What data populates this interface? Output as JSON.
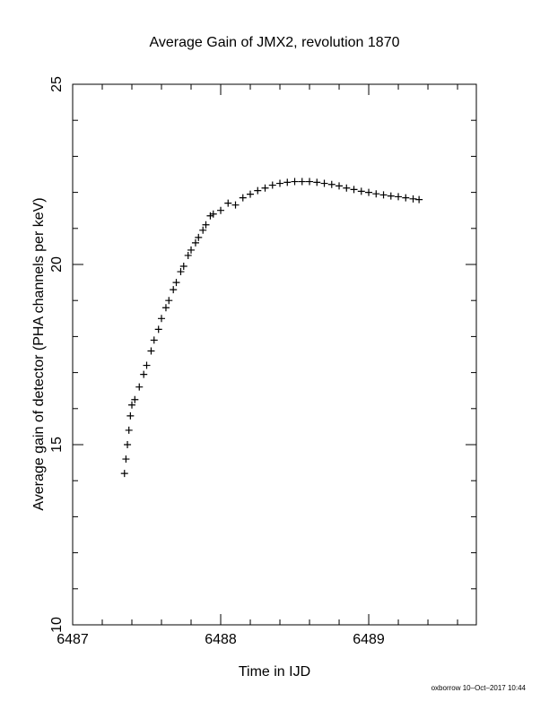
{
  "chart_data": {
    "type": "scatter",
    "title": "Average Gain of JMX2, revolution 1870",
    "xlabel": "Time in IJD",
    "ylabel": "Average gain of detector (PHA channels per keV)",
    "color": "#000000",
    "x": [
      6487.35,
      6487.36,
      6487.37,
      6487.38,
      6487.39,
      6487.4,
      6487.42,
      6487.45,
      6487.48,
      6487.5,
      6487.53,
      6487.55,
      6487.58,
      6487.6,
      6487.63,
      6487.65,
      6487.68,
      6487.7,
      6487.73,
      6487.75,
      6487.78,
      6487.8,
      6487.83,
      6487.85,
      6487.88,
      6487.9,
      6487.93,
      6487.95,
      6488.0,
      6488.05,
      6488.1,
      6488.15,
      6488.2,
      6488.25,
      6488.3,
      6488.35,
      6488.4,
      6488.45,
      6488.5,
      6488.55,
      6488.6,
      6488.65,
      6488.7,
      6488.75,
      6488.8,
      6488.85,
      6488.9,
      6488.95,
      6489.0,
      6489.05,
      6489.1,
      6489.15,
      6489.2,
      6489.25,
      6489.3,
      6489.34
    ],
    "values": [
      14.2,
      14.6,
      15.0,
      15.4,
      15.8,
      16.1,
      16.25,
      16.6,
      16.95,
      17.2,
      17.6,
      17.9,
      18.2,
      18.5,
      18.8,
      19.0,
      19.3,
      19.5,
      19.8,
      19.95,
      20.25,
      20.4,
      20.6,
      20.75,
      20.95,
      21.1,
      21.35,
      21.4,
      21.5,
      21.7,
      21.65,
      21.85,
      21.95,
      22.05,
      22.12,
      22.2,
      22.25,
      22.28,
      22.3,
      22.3,
      22.3,
      22.28,
      22.25,
      22.22,
      22.18,
      22.12,
      22.08,
      22.03,
      22.0,
      21.96,
      21.93,
      21.9,
      21.88,
      21.85,
      21.82,
      21.8
    ],
    "xlim": [
      6487,
      6489.727
    ],
    "ylim": [
      10,
      25
    ],
    "xticks": [
      6487,
      6488,
      6489
    ],
    "yticks": [
      10,
      15,
      20,
      25
    ],
    "xminorticks": [
      6487.2,
      6487.4,
      6487.6,
      6487.8,
      6488.2,
      6488.4,
      6488.6,
      6488.8,
      6489.2,
      6489.4,
      6489.6
    ],
    "yminorticks": [
      11,
      12,
      13,
      14,
      16,
      17,
      18,
      19,
      21,
      22,
      23,
      24
    ]
  },
  "footer": "oxborrow 10–Oct–2017 10:44"
}
